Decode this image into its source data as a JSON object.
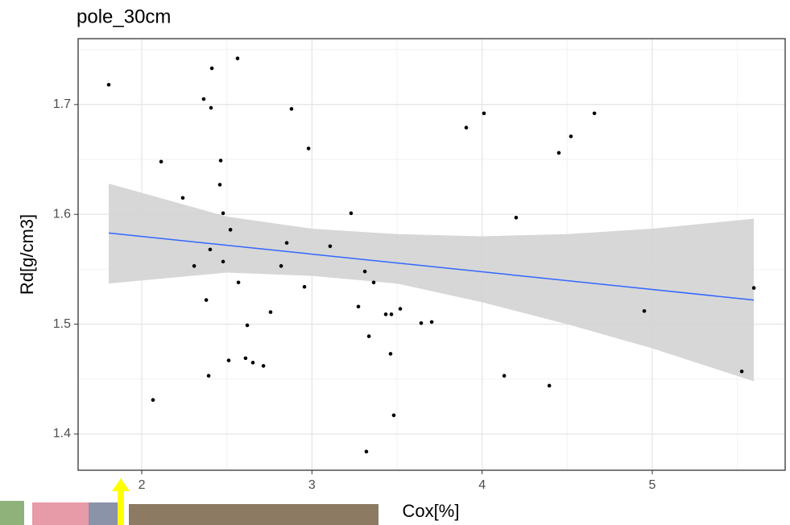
{
  "chart_data": {
    "type": "scatter",
    "title": "pole_30cm",
    "xlabel": "Cox[%]",
    "ylabel": "Rd[g/cm3]",
    "xlim": [
      1.626,
      5.781
    ],
    "ylim": [
      1.367,
      1.76
    ],
    "xticks": [
      2,
      3,
      4,
      5
    ],
    "yticks": [
      1.4,
      1.5,
      1.6,
      1.7
    ],
    "x_minor_grid": [
      2.5,
      3.5,
      4.5,
      5.5
    ],
    "y_minor_grid": [
      1.45,
      1.55,
      1.65,
      1.75
    ],
    "grid": true,
    "point_color": "#000000",
    "x": [
      1.806,
      2.114,
      2.241,
      2.066,
      2.308,
      2.364,
      2.412,
      2.407,
      2.379,
      2.393,
      2.402,
      2.464,
      2.459,
      2.478,
      2.521,
      2.478,
      2.511,
      2.563,
      2.568,
      2.62,
      2.61,
      2.653,
      2.715,
      2.757,
      2.819,
      2.852,
      2.88,
      2.956,
      2.98,
      3.107,
      3.23,
      3.273,
      3.311,
      3.363,
      3.335,
      3.32,
      3.434,
      3.467,
      3.519,
      3.462,
      3.481,
      3.642,
      3.704,
      3.907,
      4.011,
      4.2,
      4.13,
      4.451,
      4.522,
      4.395,
      4.66,
      4.953,
      5.526,
      5.597
    ],
    "y": [
      1.718,
      1.648,
      1.615,
      1.431,
      1.553,
      1.705,
      1.733,
      1.697,
      1.522,
      1.453,
      1.568,
      1.649,
      1.627,
      1.601,
      1.586,
      1.557,
      1.467,
      1.742,
      1.538,
      1.499,
      1.469,
      1.465,
      1.462,
      1.511,
      1.553,
      1.574,
      1.696,
      1.534,
      1.66,
      1.571,
      1.601,
      1.516,
      1.548,
      1.538,
      1.489,
      1.384,
      1.509,
      1.509,
      1.514,
      1.473,
      1.417,
      1.501,
      1.502,
      1.679,
      1.692,
      1.597,
      1.453,
      1.656,
      1.671,
      1.444,
      1.692,
      1.512,
      1.457,
      1.533
    ],
    "fit": {
      "x": [
        1.806,
        5.597
      ],
      "y": [
        1.583,
        1.522
      ],
      "color": "#3366ff"
    },
    "ribbon": {
      "x": [
        1.806,
        2.5,
        3.0,
        3.5,
        4.0,
        4.5,
        5.0,
        5.597
      ],
      "lower": [
        1.537,
        1.547,
        1.544,
        1.537,
        1.52,
        1.5,
        1.478,
        1.448
      ],
      "upper": [
        1.628,
        1.598,
        1.587,
        1.582,
        1.58,
        1.582,
        1.587,
        1.596
      ],
      "color": "#d3d3d3"
    }
  }
}
